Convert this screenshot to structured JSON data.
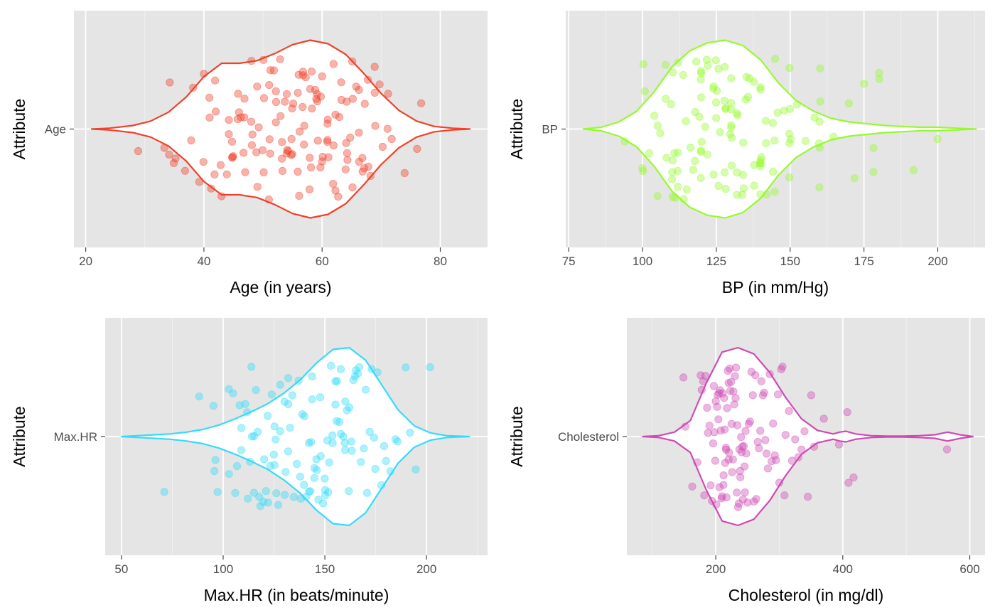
{
  "chart_data": [
    {
      "type": "violin+jitter",
      "category": "Age",
      "xlabel": "Age (in years)",
      "ylabel": "Attribute",
      "color": "#f0412a",
      "xlim": [
        18,
        88
      ],
      "xticks": [
        20,
        40,
        60,
        80
      ],
      "grid": true,
      "density": {
        "x": [
          21,
          24,
          28,
          31,
          34,
          37,
          40,
          43,
          46,
          49,
          52,
          55,
          58,
          61,
          64,
          67,
          70,
          73,
          76,
          79,
          82,
          85
        ],
        "half_width": [
          0.0,
          0.01,
          0.04,
          0.09,
          0.19,
          0.36,
          0.59,
          0.74,
          0.74,
          0.77,
          0.85,
          0.95,
          1.0,
          0.96,
          0.84,
          0.63,
          0.4,
          0.21,
          0.09,
          0.03,
          0.01,
          0.0
        ]
      },
      "points_x": [
        29,
        33,
        34,
        34,
        35,
        35,
        37,
        38,
        38,
        39,
        40,
        40,
        41,
        41,
        41,
        42,
        42,
        42,
        43,
        43,
        44,
        44,
        44,
        45,
        45,
        45,
        45,
        46,
        46,
        46,
        46,
        47,
        47,
        47,
        47,
        48,
        48,
        48,
        48,
        49,
        49,
        49,
        49,
        50,
        50,
        50,
        50,
        51,
        51,
        51,
        51,
        51,
        52,
        52,
        52,
        52,
        53,
        53,
        53,
        53,
        53,
        54,
        54,
        54,
        54,
        54,
        55,
        55,
        55,
        55,
        55,
        56,
        56,
        56,
        56,
        56,
        57,
        57,
        57,
        57,
        57,
        57,
        58,
        58,
        58,
        58,
        58,
        58,
        59,
        59,
        59,
        59,
        59,
        60,
        60,
        60,
        60,
        60,
        61,
        61,
        61,
        61,
        61,
        62,
        62,
        62,
        62,
        62,
        63,
        63,
        63,
        63,
        64,
        64,
        64,
        64,
        64,
        65,
        65,
        65,
        65,
        66,
        66,
        66,
        66,
        67,
        67,
        67,
        67,
        68,
        68,
        68,
        69,
        69,
        69,
        70,
        70,
        71,
        71,
        72,
        74,
        76,
        77
      ]
    },
    {
      "type": "violin+jitter",
      "category": "BP",
      "xlabel": "BP (in mm/Hg)",
      "ylabel": "Attribute",
      "color": "#96fa2d",
      "xlim": [
        74,
        216
      ],
      "xticks": [
        75,
        100,
        125,
        150,
        175,
        200
      ],
      "grid": true,
      "density": {
        "x": [
          80,
          86,
          92,
          98,
          104,
          110,
          116,
          122,
          128,
          134,
          140,
          146,
          152,
          158,
          164,
          170,
          176,
          182,
          188,
          194,
          200,
          206,
          213
        ],
        "half_width": [
          0.0,
          0.02,
          0.08,
          0.2,
          0.42,
          0.7,
          0.88,
          0.97,
          1.0,
          0.94,
          0.78,
          0.52,
          0.32,
          0.2,
          0.12,
          0.08,
          0.06,
          0.04,
          0.03,
          0.02,
          0.02,
          0.01,
          0.0
        ]
      },
      "points_x": [
        94,
        100,
        100,
        100,
        101,
        102,
        104,
        105,
        105,
        106,
        108,
        108,
        108,
        110,
        110,
        110,
        110,
        110,
        110,
        111,
        111,
        112,
        112,
        112,
        112,
        114,
        114,
        115,
        115,
        116,
        117,
        118,
        118,
        118,
        119,
        120,
        120,
        120,
        120,
        120,
        120,
        120,
        120,
        121,
        122,
        122,
        122,
        124,
        124,
        124,
        125,
        125,
        125,
        125,
        126,
        126,
        126,
        128,
        128,
        128,
        128,
        128,
        128,
        130,
        130,
        130,
        130,
        130,
        130,
        130,
        130,
        132,
        132,
        132,
        132,
        134,
        134,
        134,
        134,
        135,
        135,
        136,
        136,
        138,
        138,
        138,
        140,
        140,
        140,
        140,
        140,
        140,
        140,
        140,
        142,
        142,
        142,
        144,
        144,
        145,
        145,
        145,
        146,
        148,
        150,
        150,
        150,
        150,
        150,
        150,
        152,
        155,
        158,
        160,
        160,
        160,
        160,
        160,
        160,
        165,
        170,
        172,
        175,
        178,
        178,
        180,
        180,
        192,
        200
      ]
    },
    {
      "type": "violin+jitter",
      "category": "Max.HR",
      "xlabel": "Max.HR (in beats/minute)",
      "ylabel": "Attribute",
      "color": "#33dcfa",
      "xlim": [
        42,
        230
      ],
      "xticks": [
        50,
        100,
        150,
        200
      ],
      "grid": true,
      "density": {
        "x": [
          50,
          58,
          66,
          74,
          82,
          90,
          98,
          106,
          114,
          122,
          130,
          138,
          146,
          154,
          162,
          170,
          178,
          186,
          194,
          202,
          210,
          221
        ],
        "half_width": [
          0.0,
          0.01,
          0.02,
          0.03,
          0.05,
          0.08,
          0.13,
          0.2,
          0.28,
          0.37,
          0.49,
          0.64,
          0.83,
          0.98,
          1.0,
          0.86,
          0.58,
          0.3,
          0.12,
          0.04,
          0.01,
          0.0
        ]
      },
      "points_x": [
        71,
        88,
        95,
        96,
        96,
        97,
        103,
        103,
        105,
        106,
        107,
        108,
        109,
        109,
        111,
        112,
        112,
        113,
        114,
        114,
        115,
        115,
        116,
        117,
        118,
        118,
        120,
        120,
        121,
        122,
        122,
        123,
        124,
        125,
        125,
        125,
        126,
        126,
        127,
        128,
        128,
        130,
        130,
        131,
        132,
        132,
        132,
        133,
        134,
        135,
        136,
        137,
        138,
        138,
        139,
        140,
        140,
        141,
        142,
        142,
        143,
        143,
        144,
        144,
        145,
        145,
        146,
        146,
        147,
        148,
        148,
        149,
        150,
        150,
        150,
        151,
        152,
        152,
        153,
        154,
        154,
        155,
        155,
        156,
        156,
        157,
        158,
        158,
        159,
        160,
        160,
        160,
        161,
        162,
        162,
        163,
        163,
        164,
        165,
        165,
        166,
        167,
        168,
        169,
        170,
        171,
        172,
        173,
        174,
        175,
        176,
        178,
        179,
        180,
        182,
        185,
        186,
        190,
        192,
        195,
        202
      ]
    },
    {
      "type": "violin+jitter",
      "category": "Cholesterol",
      "xlabel": "Cholesterol (in mg/dl)",
      "ylabel": "Attribute",
      "color": "#cf4ab4",
      "xlim": [
        60,
        624
      ],
      "xticks": [
        200,
        400,
        600
      ],
      "grid": true,
      "density": {
        "x": [
          85,
          110,
          135,
          160,
          185,
          210,
          235,
          260,
          285,
          310,
          335,
          360,
          385,
          395,
          405,
          420,
          445,
          470,
          495,
          520,
          545,
          565,
          585,
          605
        ],
        "half_width": [
          0.0,
          0.01,
          0.05,
          0.18,
          0.6,
          0.95,
          1.0,
          0.93,
          0.72,
          0.44,
          0.2,
          0.07,
          0.03,
          0.05,
          0.06,
          0.03,
          0.01,
          0.005,
          0.005,
          0.01,
          0.02,
          0.05,
          0.02,
          0.0
        ]
      },
      "points_x": [
        149,
        152,
        163,
        171,
        176,
        178,
        180,
        182,
        184,
        186,
        188,
        190,
        192,
        194,
        196,
        197,
        198,
        199,
        200,
        201,
        202,
        203,
        204,
        205,
        206,
        207,
        208,
        209,
        210,
        211,
        212,
        212,
        213,
        214,
        215,
        216,
        216,
        217,
        218,
        219,
        220,
        220,
        221,
        222,
        223,
        224,
        225,
        226,
        227,
        228,
        229,
        230,
        231,
        232,
        233,
        234,
        235,
        236,
        237,
        238,
        239,
        240,
        241,
        242,
        243,
        244,
        245,
        246,
        247,
        248,
        250,
        252,
        254,
        256,
        258,
        260,
        262,
        264,
        266,
        268,
        270,
        272,
        274,
        276,
        278,
        280,
        282,
        285,
        288,
        290,
        293,
        295,
        298,
        300,
        303,
        305,
        308,
        310,
        315,
        320,
        325,
        330,
        335,
        340,
        345,
        350,
        355,
        370,
        394,
        407,
        409,
        417,
        564
      ]
    }
  ]
}
